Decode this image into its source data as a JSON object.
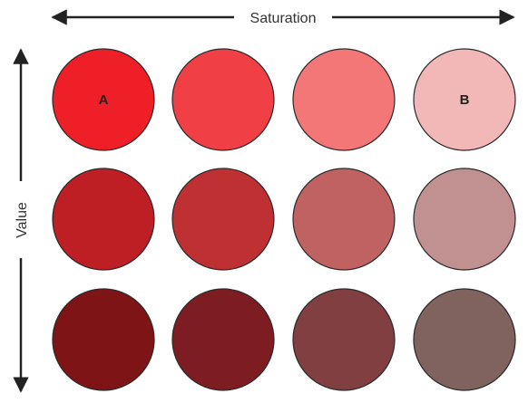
{
  "axes": {
    "horizontal_label": "Saturation",
    "vertical_label": "Value",
    "line_color": "#222222"
  },
  "swatch_outline_color": "#2a2a2a",
  "rows": [
    {
      "swatches": [
        {
          "color": "#ee1f27",
          "label": "A"
        },
        {
          "color": "#f04046",
          "label": ""
        },
        {
          "color": "#f37776",
          "label": ""
        },
        {
          "color": "#f2b8b8",
          "label": "B"
        }
      ]
    },
    {
      "swatches": [
        {
          "color": "#bd1f25",
          "label": ""
        },
        {
          "color": "#bf3033",
          "label": ""
        },
        {
          "color": "#c16262",
          "label": ""
        },
        {
          "color": "#c09190",
          "label": ""
        }
      ]
    },
    {
      "swatches": [
        {
          "color": "#7f1417",
          "label": ""
        },
        {
          "color": "#7e1d21",
          "label": ""
        },
        {
          "color": "#823f42",
          "label": ""
        },
        {
          "color": "#80625f",
          "label": ""
        }
      ]
    }
  ]
}
